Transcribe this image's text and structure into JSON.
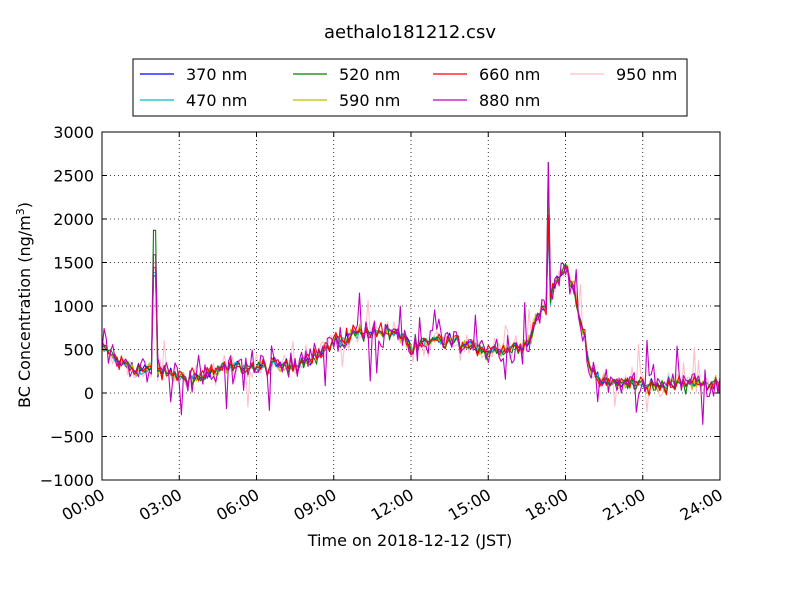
{
  "chart_data": {
    "type": "line",
    "title": "aethalo181212.csv",
    "xlabel": "Time on 2018-12-12 (JST)",
    "ylabel_main": "BC Concentration (ng/m",
    "ylabel_sup": "3",
    "ylabel_end": ")",
    "ylim": [
      -1000,
      3000
    ],
    "xlim_hours": [
      0,
      24
    ],
    "y_ticks": [
      -1000,
      -500,
      0,
      500,
      1000,
      1500,
      2000,
      2500,
      3000
    ],
    "y_tick_labels": [
      "−1000",
      "−500",
      "0",
      "500",
      "1000",
      "1500",
      "2000",
      "2500",
      "3000"
    ],
    "x_ticks_hours": [
      0,
      3,
      6,
      9,
      12,
      15,
      18,
      21,
      24
    ],
    "x_tick_labels": [
      "00:00",
      "03:00",
      "06:00",
      "09:00",
      "12:00",
      "15:00",
      "18:00",
      "21:00",
      "24:00"
    ],
    "grid": true,
    "legend_position": "top-center",
    "series": [
      {
        "name": "370 nm",
        "color": "#0000ff"
      },
      {
        "name": "470 nm",
        "color": "#00bfbf"
      },
      {
        "name": "520 nm",
        "color": "#008000"
      },
      {
        "name": "590 nm",
        "color": "#bfbf00"
      },
      {
        "name": "660 nm",
        "color": "#ff0000"
      },
      {
        "name": "880 nm",
        "color": "#bf00bf"
      },
      {
        "name": "950 nm",
        "color": "#ffc0cb"
      }
    ],
    "baseline_profile": [
      [
        0.0,
        520
      ],
      [
        0.4,
        430
      ],
      [
        0.8,
        330
      ],
      [
        1.2,
        290
      ],
      [
        1.6,
        270
      ],
      [
        2.0,
        250
      ],
      [
        2.5,
        230
      ],
      [
        3.0,
        190
      ],
      [
        3.5,
        170
      ],
      [
        4.0,
        210
      ],
      [
        4.5,
        260
      ],
      [
        5.0,
        290
      ],
      [
        5.5,
        300
      ],
      [
        6.0,
        280
      ],
      [
        6.5,
        300
      ],
      [
        7.0,
        310
      ],
      [
        7.5,
        330
      ],
      [
        8.0,
        390
      ],
      [
        8.5,
        470
      ],
      [
        9.0,
        580
      ],
      [
        9.5,
        640
      ],
      [
        10.0,
        700
      ],
      [
        10.5,
        720
      ],
      [
        11.0,
        700
      ],
      [
        11.5,
        680
      ],
      [
        11.8,
        650
      ],
      [
        12.0,
        500
      ],
      [
        12.5,
        560
      ],
      [
        13.0,
        600
      ],
      [
        13.5,
        600
      ],
      [
        14.0,
        560
      ],
      [
        14.5,
        520
      ],
      [
        15.0,
        500
      ],
      [
        15.5,
        490
      ],
      [
        16.0,
        520
      ],
      [
        16.5,
        580
      ],
      [
        17.0,
        920
      ],
      [
        17.3,
        1000
      ],
      [
        17.6,
        1250
      ],
      [
        18.0,
        1450
      ],
      [
        18.3,
        1250
      ],
      [
        18.6,
        800
      ],
      [
        18.8,
        500
      ],
      [
        19.0,
        250
      ],
      [
        19.3,
        130
      ],
      [
        19.6,
        130
      ],
      [
        20.0,
        110
      ],
      [
        20.5,
        110
      ],
      [
        21.0,
        100
      ],
      [
        21.5,
        90
      ],
      [
        22.0,
        110
      ],
      [
        22.5,
        100
      ],
      [
        23.0,
        110
      ],
      [
        23.5,
        100
      ],
      [
        24.0,
        110
      ]
    ],
    "spikes": [
      {
        "hour": 2.05,
        "value": 1870
      },
      {
        "hour": 17.3,
        "value": 2650
      }
    ]
  }
}
